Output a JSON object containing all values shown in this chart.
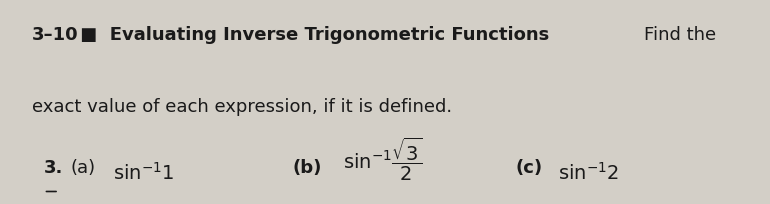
{
  "bg_color": "#d3cfc7",
  "text_color": "#1a1a1a",
  "heading_number": "3–10",
  "heading_bold": " ■  Evaluating Inverse Trigonometric Functions",
  "heading_normal": "Find the",
  "subheading": "exact value of each expression, if it is defined.",
  "problem_number": "3.",
  "part_a_label": "(a)",
  "part_b_label": "(b)",
  "part_c_label": "(c)",
  "figsize": [
    7.7,
    2.05
  ],
  "dpi": 100
}
